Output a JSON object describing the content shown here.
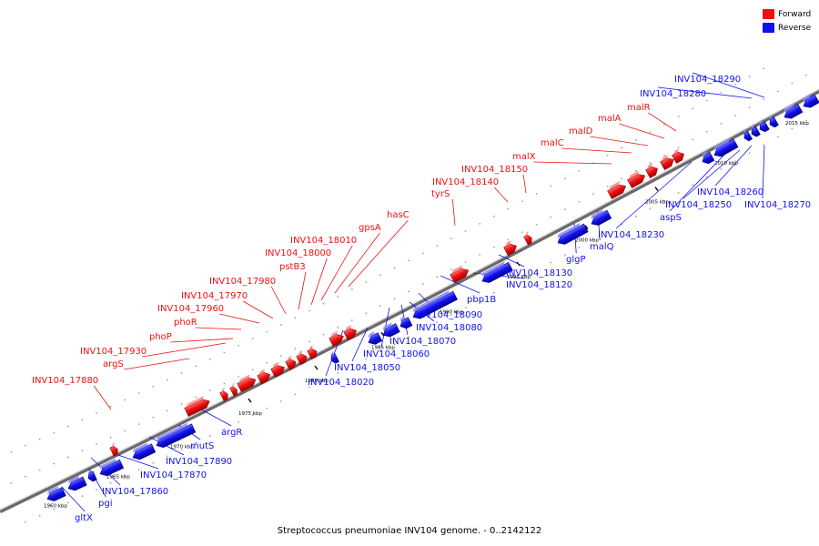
{
  "caption": "Streptococcus pneumoniae INV104 genome. - 0..2142122",
  "legend": {
    "forward_label": "Forward",
    "reverse_label": "Reverse",
    "forward_color": "#ee1111",
    "reverse_color": "#1111ee"
  },
  "ticks": [
    {
      "label": "1960 kbp"
    },
    {
      "label": "1965 kbp"
    },
    {
      "label": "1970 kbp"
    },
    {
      "label": "1975 kbp"
    },
    {
      "label": "1980 kbp"
    },
    {
      "label": "1985 kbp"
    },
    {
      "label": "1990 kbp"
    },
    {
      "label": "1995 kbp"
    },
    {
      "label": "2000 kbp"
    },
    {
      "label": "2005 kbp"
    },
    {
      "label": "2010 kbp"
    },
    {
      "label": "2015 kbp"
    }
  ],
  "forward_labels": [
    "INV104_17880",
    "argS",
    "INV104_17930",
    "phoP",
    "phoR",
    "INV104_17960",
    "INV104_17970",
    "INV104_17980",
    "pstB3",
    "INV104_18000",
    "INV104_18010",
    "gpsA",
    "hasC",
    "tyrS",
    "INV104_18140",
    "INV104_18150",
    "malX",
    "malC",
    "malD",
    "malA",
    "malR"
  ],
  "reverse_labels": [
    "gltX",
    "pgi",
    "INV104_17860",
    "INV104_17870",
    "INV104_17890",
    "mutS",
    "argR",
    "INV104_18020",
    "INV104_18050",
    "INV104_18060",
    "INV104_18070",
    "INV104_18080",
    "INV104_18090",
    "pbp1B",
    "INV104_18120",
    "INV104_18130",
    "glgP",
    "malQ",
    "INV104_18230",
    "aspS",
    "INV104_18250",
    "INV104_18260",
    "INV104_18270",
    "INV104_18280",
    "INV104_18290"
  ]
}
